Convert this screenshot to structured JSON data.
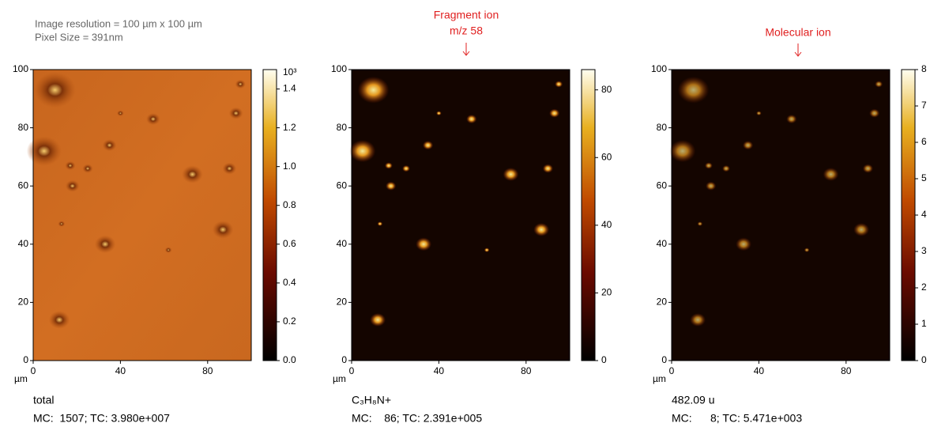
{
  "header": {
    "lines": [
      "Image resolution = 100 µm x 100 µm",
      "Pixel Size = 391nm"
    ]
  },
  "annotations": [
    {
      "lines": [
        "Fragment ion",
        "m/z 58"
      ]
    },
    {
      "lines": [
        "Molecular ion"
      ]
    }
  ],
  "panels": [
    {
      "xlim": [
        0,
        100
      ],
      "ylim": [
        0,
        100
      ],
      "xticks": [
        0,
        40,
        80
      ],
      "yticks": [
        0,
        20,
        40,
        60,
        80,
        100
      ],
      "axis_unit": "µm",
      "colorbar": {
        "lim": [
          0,
          1.5
        ],
        "multiplier": "10³",
        "ticks": [
          {
            "value": 0,
            "label": "0.0"
          },
          0.2,
          0.4,
          0.6,
          0.8,
          {
            "value": 1,
            "label": "1.0"
          },
          1.2,
          1.4
        ]
      },
      "name": "total",
      "stats": "MC:  1507; TC: 3.980e+007"
    },
    {
      "xlim": [
        0,
        100
      ],
      "ylim": [
        0,
        100
      ],
      "xticks": [
        0,
        40,
        80
      ],
      "yticks": [
        0,
        20,
        40,
        60,
        80,
        100
      ],
      "axis_unit": "µm",
      "colorbar": {
        "lim": [
          0,
          86
        ],
        "ticks": [
          0,
          20,
          40,
          60,
          80
        ]
      },
      "name": "C₃H₈N+",
      "stats": "MC:    86; TC: 2.391e+005"
    },
    {
      "xlim": [
        0,
        100
      ],
      "ylim": [
        0,
        100
      ],
      "xticks": [
        0,
        40,
        80
      ],
      "yticks": [
        0,
        20,
        40,
        60,
        80,
        100
      ],
      "axis_unit": "µm",
      "colorbar": {
        "lim": [
          0,
          8
        ],
        "ticks": [
          0,
          1,
          2,
          3,
          4,
          5,
          6,
          7,
          8
        ]
      },
      "name": "482.09 u",
      "stats": "MC:      8; TC: 5.471e+003"
    }
  ]
}
